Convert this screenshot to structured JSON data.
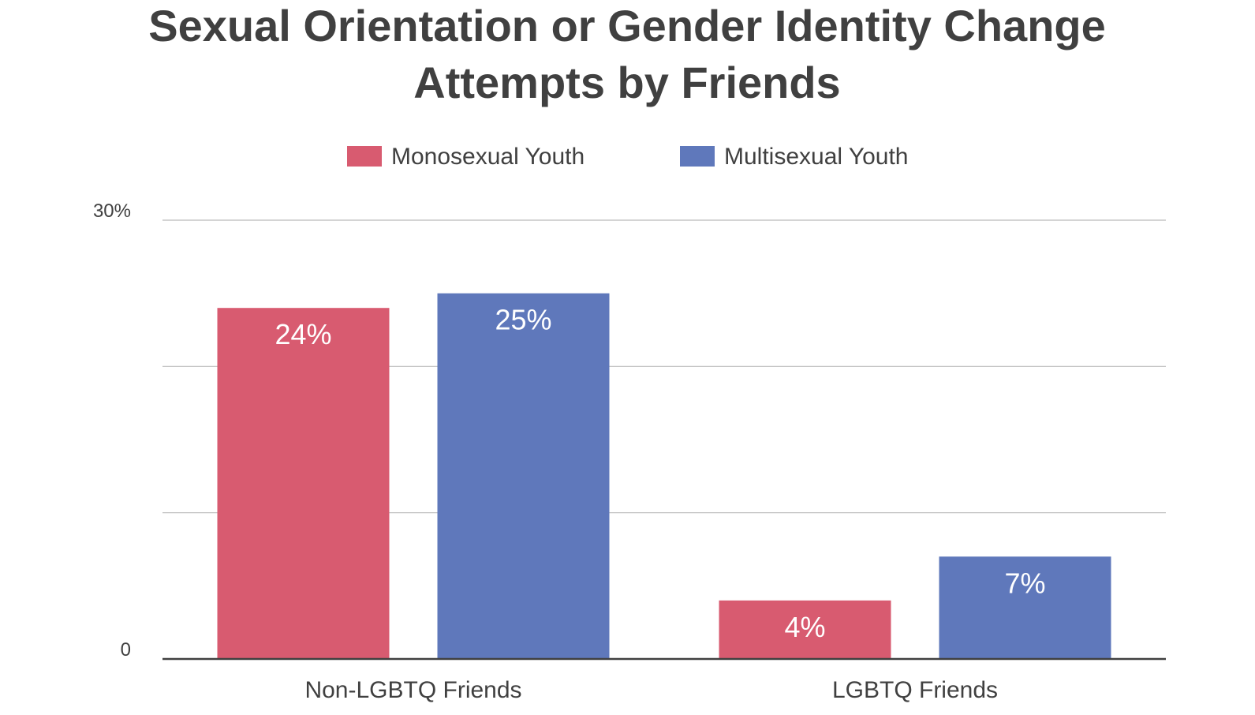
{
  "chart_data": {
    "type": "bar",
    "title": "Sexual Orientation or Gender Identity Change Attempts by Friends",
    "title_lines": [
      "Sexual Orientation or Gender Identity Change",
      "Attempts by Friends"
    ],
    "categories": [
      "Non-LGBTQ Friends",
      "LGBTQ Friends"
    ],
    "series": [
      {
        "name": "Monosexual Youth",
        "values": [
          24,
          4
        ],
        "labels": [
          "24%",
          "4%"
        ],
        "color": "#d85b70"
      },
      {
        "name": "Multisexual Youth",
        "values": [
          25,
          7
        ],
        "labels": [
          "25%",
          "7%"
        ],
        "color": "#5f78bb"
      }
    ],
    "y_ticks": [
      {
        "value": 0,
        "label": "0"
      },
      {
        "value": 30,
        "label": "30%"
      }
    ],
    "gridlines": [
      10,
      20,
      30
    ],
    "ylim": [
      0,
      30
    ],
    "xlabel": "",
    "ylabel": "",
    "legend_position": "top",
    "grid": true,
    "colors": {
      "text": "#404040",
      "grid": "#bbbbbb",
      "axis": "#404040",
      "data_label": "#ffffff"
    }
  }
}
